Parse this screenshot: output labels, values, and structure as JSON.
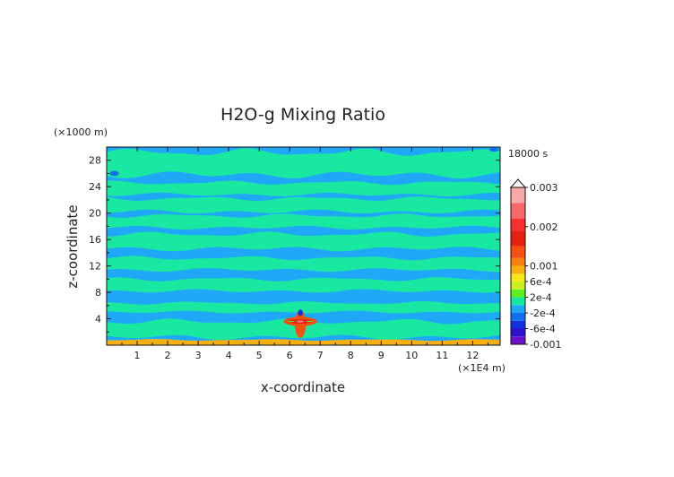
{
  "chart_data": {
    "type": "heatmap",
    "title": "H2O-g Mixing Ratio",
    "xlabel": "x-coordinate",
    "ylabel": "z-coordinate",
    "x_unit": "(×1E4 m)",
    "y_unit": "(×1000 m)",
    "time_label": "18000 s",
    "xlim": [
      0,
      12.9
    ],
    "ylim": [
      0,
      30
    ],
    "x_ticks": [
      "1",
      "2",
      "3",
      "4",
      "5",
      "6",
      "7",
      "8",
      "9",
      "10",
      "11",
      "12"
    ],
    "y_ticks": [
      "4",
      "8",
      "12",
      "16",
      "20",
      "24",
      "28"
    ],
    "colorbar": {
      "tick_labels": [
        "0.003",
        "0.002",
        "0.001",
        "6e-4",
        "2e-4",
        "-2e-4",
        "-6e-4",
        "-0.001"
      ],
      "tick_values": [
        0.003,
        0.002,
        0.001,
        0.0006,
        0.0002,
        -0.0002,
        -0.0006,
        -0.001
      ],
      "min": -0.001,
      "max": 0.003,
      "levels": [
        {
          "lo": -0.001,
          "hi": -0.0008,
          "color": "#6a10c8"
        },
        {
          "lo": -0.0008,
          "hi": -0.0006,
          "color": "#3010d0"
        },
        {
          "lo": -0.0006,
          "hi": -0.0004,
          "color": "#1030e0"
        },
        {
          "lo": -0.0004,
          "hi": -0.0002,
          "color": "#1070f0"
        },
        {
          "lo": -0.0002,
          "hi": 0.0,
          "color": "#20a8f8"
        },
        {
          "lo": 0.0,
          "hi": 0.0002,
          "color": "#18e8a0"
        },
        {
          "lo": 0.0002,
          "hi": 0.0004,
          "color": "#60f020"
        },
        {
          "lo": 0.0004,
          "hi": 0.0006,
          "color": "#c8f020"
        },
        {
          "lo": 0.0006,
          "hi": 0.0008,
          "color": "#f8e818"
        },
        {
          "lo": 0.0008,
          "hi": 0.001,
          "color": "#f8b010"
        },
        {
          "lo": 0.001,
          "hi": 0.0012,
          "color": "#f88010"
        },
        {
          "lo": 0.0012,
          "hi": 0.0015,
          "color": "#f85010"
        },
        {
          "lo": 0.0015,
          "hi": 0.0019,
          "color": "#e82010"
        },
        {
          "lo": 0.0019,
          "hi": 0.0022,
          "color": "#f83030"
        },
        {
          "lo": 0.0022,
          "hi": 0.0026,
          "color": "#f86868"
        },
        {
          "lo": 0.0026,
          "hi": 0.003,
          "color": "#f8a8a8"
        }
      ]
    },
    "background_value": -0.0001,
    "regions": [
      {
        "kind": "band",
        "y": [
          25.8,
          29.2
        ],
        "value": 0.0001
      },
      {
        "kind": "band",
        "y": [
          22.8,
          24.6
        ],
        "value": 0.0001
      },
      {
        "kind": "band",
        "y": [
          20.2,
          22.2
        ],
        "value": 0.0001
      },
      {
        "kind": "band",
        "y": [
          17.8,
          19.6
        ],
        "value": 0.0001
      },
      {
        "kind": "band",
        "y": [
          14.6,
          16.8
        ],
        "value": 0.0001
      },
      {
        "kind": "band",
        "y": [
          11.4,
          13.2
        ],
        "value": 0.0001
      },
      {
        "kind": "band",
        "y": [
          8.2,
          10.0
        ],
        "value": 0.0001
      },
      {
        "kind": "band",
        "y": [
          5.0,
          6.4
        ],
        "value": 0.0001
      },
      {
        "kind": "band",
        "y": [
          1.2,
          3.6
        ],
        "value": 0.0001
      },
      {
        "kind": "band",
        "y": [
          0.0,
          0.8
        ],
        "value": 0.0009
      },
      {
        "kind": "blob",
        "x": 6.35,
        "y": 3.6,
        "rx": 0.55,
        "ry": 0.7,
        "value": 0.0013
      },
      {
        "kind": "blob",
        "x": 6.35,
        "y": 3.2,
        "rx": 0.18,
        "ry": 2.1,
        "value": 0.0013
      },
      {
        "kind": "blob",
        "x": 6.35,
        "y": 3.6,
        "rx": 0.38,
        "ry": 0.35,
        "value": 0.0017
      },
      {
        "kind": "blob",
        "x": 6.35,
        "y": 3.6,
        "rx": 0.12,
        "ry": 0.2,
        "value": 0.0024
      },
      {
        "kind": "blob",
        "x": 6.35,
        "y": 4.9,
        "rx": 0.08,
        "ry": 0.5,
        "value": -0.0005
      },
      {
        "kind": "blob",
        "x": 6.05,
        "y": 3.6,
        "rx": 0.12,
        "ry": 0.08,
        "value": 0.0002
      },
      {
        "kind": "blob",
        "x": 6.65,
        "y": 3.6,
        "rx": 0.12,
        "ry": 0.08,
        "value": 0.0002
      },
      {
        "kind": "blob",
        "x": 0.25,
        "y": 26.0,
        "rx": 0.15,
        "ry": 0.4,
        "value": -0.0003
      },
      {
        "kind": "blob",
        "x": 12.7,
        "y": 29.6,
        "rx": 0.15,
        "ry": 0.3,
        "value": -0.0003
      }
    ]
  }
}
